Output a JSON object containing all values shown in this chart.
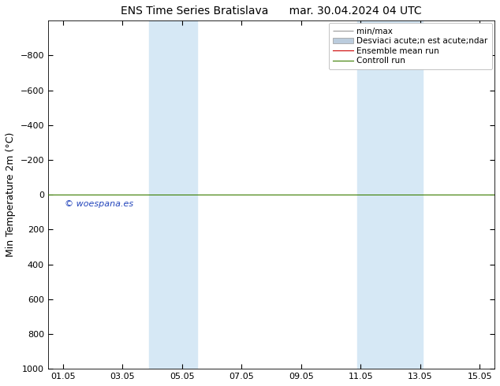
{
  "title": "ENS Time Series Bratislava      mar. 30.04.2024 04 UTC",
  "ylabel": "Min Temperature 2m (°C)",
  "ylim_top": -1000,
  "ylim_bottom": 1000,
  "yticks": [
    -800,
    -600,
    -400,
    -200,
    0,
    200,
    400,
    600,
    800,
    1000
  ],
  "xlim_min": 0.5,
  "xlim_max": 15.5,
  "xtick_labels": [
    "01.05",
    "03.05",
    "05.05",
    "07.05",
    "09.05",
    "11.05",
    "13.05",
    "15.05"
  ],
  "xtick_positions": [
    1,
    3,
    5,
    7,
    9,
    11,
    13,
    15
  ],
  "shaded_bands": [
    {
      "x_start": 3.9,
      "x_end": 5.5
    },
    {
      "x_start": 10.9,
      "x_end": 13.1
    }
  ],
  "shaded_color": "#d6e8f5",
  "line_color_control": "#3a7d00",
  "line_color_ensemble": "#cc0000",
  "line_color_minmax": "#999999",
  "line_y_value": 0,
  "legend_entries": [
    "min/max",
    "Desviaci acute;n est acute;ndar",
    "Ensemble mean run",
    "Controll run"
  ],
  "legend_line_colors": [
    "#999999",
    "#bbccdd",
    "#cc0000",
    "#3a7d00"
  ],
  "watermark": "© woespana.es",
  "watermark_color": "#2244bb",
  "background_color": "#ffffff",
  "font_size_title": 10,
  "font_size_axis": 9,
  "font_size_tick": 8,
  "font_size_legend": 7.5,
  "font_size_watermark": 8
}
